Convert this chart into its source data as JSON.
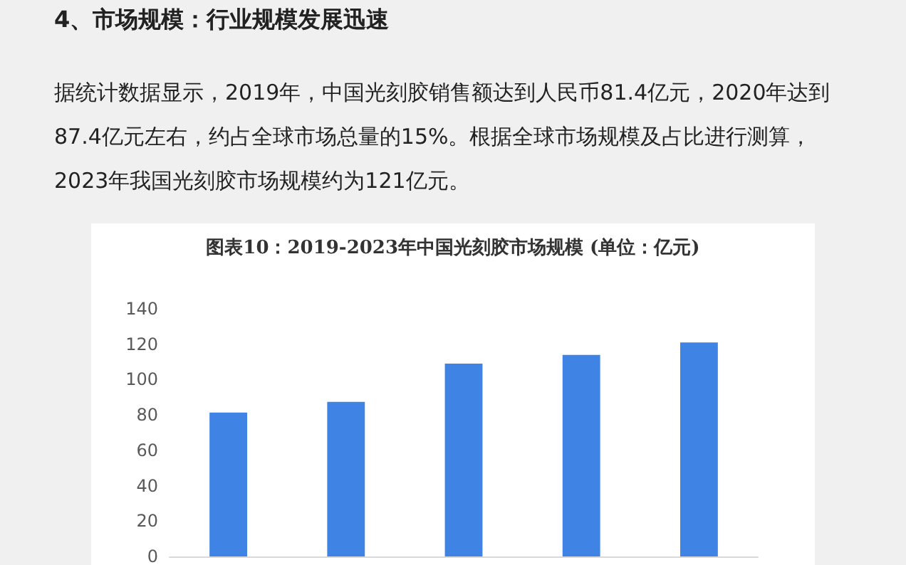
{
  "chart_data": {
    "type": "bar",
    "title": "图表10：2019-2023年中国光刻胶市场规模 (单位：亿元)",
    "annotations": [
      "4、市场规模：行业规模发展迅速",
      "据统计数据显示，2019年，中国光刻胶销售额达到人民币81.4亿元，2020年达到87.4亿元左右，约占全球市场总量的15%。根据全球市场规模及占比进行测算，2023年我国光刻胶市场规模约为121亿元。"
    ],
    "categories": [
      null,
      null,
      null,
      null,
      null
    ],
    "values": [
      81.4,
      87.4,
      109,
      114,
      121
    ],
    "color": "#3f84e5",
    "ylim": [
      0,
      140
    ],
    "yticks": [
      0,
      20,
      40,
      60,
      80,
      100,
      120,
      140
    ],
    "tick_labels": "y",
    "grid": false
  }
}
